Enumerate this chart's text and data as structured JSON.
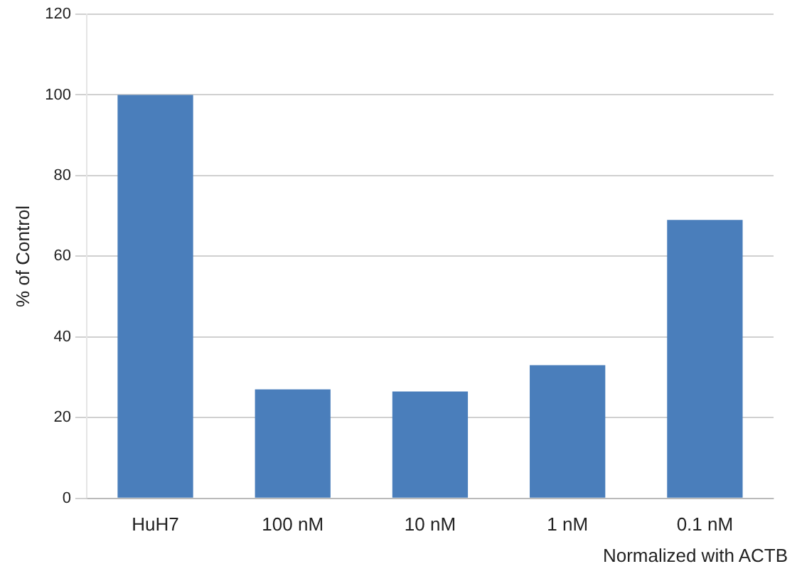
{
  "chart_data": {
    "type": "bar",
    "ylabel": "% of Control",
    "categories": [
      "HuH7",
      "100 nM",
      "10 nM",
      "1 nM",
      "0.1 nM"
    ],
    "values": [
      100,
      27,
      26.5,
      33,
      69
    ],
    "color": "#4a7ebb",
    "ylim": [
      0,
      120
    ],
    "yticks": [
      0,
      20,
      40,
      60,
      80,
      100,
      120
    ],
    "grid": "y",
    "annotations": [
      "Normalized with ACTB"
    ]
  }
}
